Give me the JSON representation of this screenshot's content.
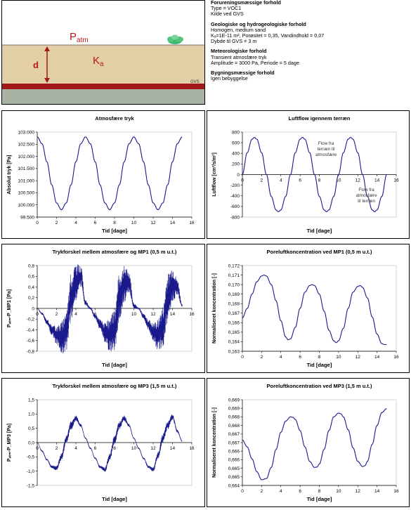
{
  "diagram": {
    "p_label": "P",
    "p_sub": "atm",
    "k_label": "K",
    "k_sub": "a",
    "d_label": "d",
    "gvs_label": "GVS"
  },
  "info": [
    {
      "heading": "Forureningsmæssige forhold",
      "lines": [
        "Type = VOC1",
        "Kilde ved GVS"
      ]
    },
    {
      "heading": "Geologiske og hydrogeologiske forhold",
      "lines": [
        "Homogen, medium sand",
        "Kₐ=1E-11 m², Porøsitet = 0,35, Vandindhold = 0,07",
        "Dybde til GVS = 3 m"
      ]
    },
    {
      "heading": "Meteorologiske forhold",
      "lines": [
        "Transient atmosfære tryk",
        "Amplitude = 3000 Pa, Periode = 5 dage"
      ]
    },
    {
      "heading": "Bygningsmæssige forhold",
      "lines": [
        "Igen bebyggelse"
      ]
    }
  ],
  "chart_data": [
    {
      "type": "line",
      "title": "Atmosfære tryk",
      "xlabel": "Tid [dage]",
      "ylabel": "Absolut tryk [Pa]",
      "xlim": [
        0,
        16
      ],
      "ylim": [
        99500,
        103000
      ],
      "xticks": [
        0,
        2,
        4,
        6,
        8,
        10,
        12,
        14,
        16
      ],
      "yticks": [
        99500,
        100000,
        100500,
        101000,
        101500,
        102000,
        102500,
        103000
      ],
      "ytick_labels": [
        "99.500",
        "100.000",
        "100.500",
        "101.000",
        "101.500",
        "102.000",
        "102.500",
        "103.000"
      ],
      "series": [
        {
          "x": [
            0,
            0.5,
            1,
            1.5,
            2,
            2.5,
            3,
            3.5,
            4,
            4.5,
            5,
            5.5,
            6,
            6.5,
            7,
            7.5,
            8,
            8.5,
            9,
            9.5,
            10,
            10.5,
            11,
            11.5,
            12,
            12.5,
            13,
            13.5,
            14,
            14.5,
            15
          ],
          "y": [
            102800,
            102519,
            101774,
            100826,
            100081,
            99800,
            100081,
            100826,
            101774,
            102519,
            102800,
            102519,
            101774,
            100826,
            100081,
            99800,
            100081,
            100826,
            101774,
            102519,
            102800,
            102519,
            101774,
            100826,
            100081,
            99800,
            100081,
            100826,
            101774,
            102519,
            102800
          ]
        }
      ]
    },
    {
      "type": "line",
      "title": "Luftflow igennem terræn",
      "xlabel": "Tid [dage]",
      "ylabel": "Luftflow [cm³/s/m²]",
      "xlim": [
        0,
        16
      ],
      "ylim": [
        -800,
        800
      ],
      "xticks": [
        0,
        2,
        4,
        6,
        8,
        10,
        12,
        14,
        16
      ],
      "yticks": [
        -800,
        -600,
        -400,
        -200,
        0,
        200,
        400,
        600,
        800
      ],
      "ytick_labels": [
        "-800",
        "-600",
        "-400",
        "-200",
        "0",
        "200",
        "400",
        "600",
        "800"
      ],
      "annotations": [
        "Flow fra terræn til atmosfære",
        "Flow fra atmosfære til terræn"
      ],
      "series": [
        {
          "x": [
            0,
            0.5,
            1,
            1.25,
            1.5,
            2,
            2.5,
            3,
            3.5,
            3.75,
            4,
            4.5,
            5,
            5.5,
            6,
            6.25,
            6.5,
            7,
            7.5,
            8,
            8.5,
            8.75,
            9,
            9.5,
            10,
            10.5,
            11,
            11.25,
            11.5,
            12,
            12.5,
            13,
            13.5,
            13.75,
            14,
            14.5,
            15
          ],
          "y": [
            0,
            411,
            666,
            700,
            666,
            411,
            0,
            -411,
            -666,
            -700,
            -666,
            -411,
            0,
            411,
            666,
            700,
            666,
            411,
            0,
            -411,
            -666,
            -700,
            -666,
            -411,
            0,
            411,
            666,
            700,
            666,
            411,
            0,
            -411,
            -666,
            -700,
            -666,
            -411,
            0
          ]
        }
      ]
    },
    {
      "type": "line",
      "title": "Trykforskel mellem atmosfære og MP1 (0,5 m u.t.)",
      "xlabel": "Tid [dage]",
      "ylabel": "Pₐₜₘ-P_MP1 [Pa]",
      "xlim": [
        0,
        16
      ],
      "ylim": [
        -0.8,
        0.8
      ],
      "xticks": [
        0,
        2,
        4,
        6,
        8,
        10,
        12,
        14,
        16
      ],
      "yticks": [
        -0.8,
        -0.6,
        -0.4,
        -0.2,
        0,
        0.2,
        0.4,
        0.6,
        0.8
      ],
      "ytick_labels": [
        "-0,8",
        "-0,6",
        "-0,4",
        "-0,2",
        "0",
        "0,2",
        "0,4",
        "0,6",
        "0,8"
      ],
      "noisy": true,
      "series": [
        {
          "x": [
            0,
            0.5,
            1,
            1.5,
            2,
            2.5,
            3,
            3.5,
            4,
            4.5,
            5,
            5.5,
            6,
            6.5,
            7,
            7.5,
            8,
            8.5,
            9,
            9.5,
            10,
            10.5,
            11,
            11.5,
            12,
            12.5,
            13,
            13.5,
            14,
            14.5,
            15
          ],
          "y": [
            0,
            -0.1,
            -0.25,
            -0.4,
            -0.5,
            -0.55,
            -0.4,
            0.2,
            0.5,
            0.6,
            0.1,
            0,
            -0.15,
            -0.3,
            -0.45,
            -0.5,
            -0.4,
            0.2,
            0.45,
            0.5,
            0.05,
            0,
            -0.15,
            -0.3,
            -0.45,
            -0.5,
            -0.35,
            0.2,
            0.45,
            0.4,
            0.05
          ],
          "noise_amplitude": [
            0,
            0.02,
            0.05,
            0.1,
            0.18,
            0.3,
            0.4,
            0.45,
            0.35,
            0.2,
            0.05,
            0.02,
            0.05,
            0.1,
            0.18,
            0.3,
            0.4,
            0.45,
            0.35,
            0.2,
            0.05,
            0.02,
            0.05,
            0.1,
            0.18,
            0.3,
            0.4,
            0.45,
            0.35,
            0.15,
            0.03
          ]
        }
      ]
    },
    {
      "type": "line",
      "title": "Poreluftkoncentration ved MP1 (0,5 m u.t.)",
      "xlabel": "Tid [dage]",
      "ylabel": "Normaliseret koncentration [-]",
      "xlim": [
        0,
        16
      ],
      "ylim": [
        0.163,
        0.172
      ],
      "xticks": [
        0,
        2,
        4,
        6,
        8,
        10,
        12,
        14,
        16
      ],
      "yticks": [
        0.163,
        0.164,
        0.165,
        0.166,
        0.167,
        0.168,
        0.169,
        0.17,
        0.171,
        0.172
      ],
      "ytick_labels": [
        "0,163",
        "0,164",
        "0,165",
        "0,166",
        "0,167",
        "0,168",
        "0,169",
        "0,170",
        "0,171",
        "0,172"
      ],
      "series": [
        {
          "x": [
            0,
            0.5,
            1,
            1.5,
            2,
            2.25,
            2.5,
            3,
            3.5,
            4,
            4.5,
            4.75,
            5,
            5.5,
            6,
            6.5,
            7,
            7.25,
            7.5,
            8,
            8.5,
            9,
            9.5,
            9.75,
            10,
            10.5,
            11,
            11.5,
            12,
            12.25,
            12.5,
            13,
            13.5,
            14,
            14.5,
            14.75,
            15
          ],
          "y": [
            0.1665,
            0.1675,
            0.169,
            0.1703,
            0.1709,
            0.171,
            0.1709,
            0.17,
            0.1683,
            0.1662,
            0.1645,
            0.1642,
            0.1643,
            0.1655,
            0.1675,
            0.1692,
            0.1699,
            0.17,
            0.1699,
            0.169,
            0.1672,
            0.1652,
            0.1641,
            0.1639,
            0.1641,
            0.1654,
            0.1675,
            0.1692,
            0.1698,
            0.1699,
            0.1697,
            0.1686,
            0.1666,
            0.1648,
            0.1638,
            0.1637,
            0.1637
          ]
        }
      ]
    },
    {
      "type": "line",
      "title": "Trykforskel mellem atmosfære og MP3 (1,5 m u.t.)",
      "xlabel": "Tid [dage]",
      "ylabel": "Pₐₜₘ-P_MP3 [Pa]",
      "xlim": [
        0,
        16
      ],
      "ylim": [
        -1.5,
        1.5
      ],
      "xticks": [
        0,
        2,
        4,
        6,
        8,
        10,
        12,
        14,
        16
      ],
      "yticks": [
        -1.5,
        -1.0,
        -0.5,
        0.0,
        0.5,
        1.0,
        1.5
      ],
      "ytick_labels": [
        "-1,5",
        "-1,0",
        "-0,5",
        "0,0",
        "0,5",
        "1,0",
        "1,5"
      ],
      "noisy": true,
      "series": [
        {
          "x": [
            0,
            0.5,
            1,
            1.5,
            2,
            2.5,
            3,
            3.5,
            4,
            4.5,
            5,
            5.5,
            6,
            6.5,
            7,
            7.5,
            8,
            8.5,
            9,
            9.5,
            10,
            10.5,
            11,
            11.5,
            12,
            12.5,
            13,
            13.5,
            14,
            14.5,
            15
          ],
          "y": [
            0,
            -0.3,
            -0.6,
            -0.85,
            -0.9,
            -0.5,
            0.1,
            0.6,
            0.85,
            0.6,
            0.15,
            -0.2,
            -0.55,
            -0.85,
            -0.95,
            -0.5,
            0.1,
            0.6,
            0.85,
            0.6,
            0.15,
            -0.2,
            -0.55,
            -0.85,
            -0.95,
            -0.45,
            0.15,
            0.6,
            0.9,
            0.4,
            0.05
          ],
          "noise_amplitude": [
            0,
            0.02,
            0.03,
            0.05,
            0.08,
            0.12,
            0.15,
            0.15,
            0.1,
            0.05,
            0.02,
            0.02,
            0.03,
            0.05,
            0.08,
            0.12,
            0.15,
            0.15,
            0.1,
            0.05,
            0.02,
            0.02,
            0.03,
            0.05,
            0.08,
            0.12,
            0.15,
            0.15,
            0.1,
            0.05,
            0.02
          ]
        }
      ]
    },
    {
      "type": "line",
      "title": "Poreluftkoncentration ved MP3 (1,5 m u.t.)",
      "xlabel": "Tid [dage]",
      "ylabel": "Normaliseret koncentration [-]",
      "xlim": [
        0,
        16
      ],
      "ylim": [
        0.664,
        0.669
      ],
      "xticks": [
        0,
        2,
        4,
        6,
        8,
        10,
        12,
        14,
        16
      ],
      "yticks": [
        0.664,
        0.6645,
        0.665,
        0.6655,
        0.666,
        0.6665,
        0.667,
        0.6675,
        0.668,
        0.6685,
        0.669
      ],
      "ytick_labels": [
        "0,664",
        "0,665",
        "0,665",
        "0,666",
        "0,666",
        "0,667",
        "0,667",
        "0,668",
        "0,668",
        "0,669",
        "0,669"
      ],
      "series": [
        {
          "x": [
            0,
            0.5,
            1,
            1.5,
            2,
            2.5,
            3,
            3.5,
            4,
            4.5,
            5,
            5.25,
            5.5,
            6,
            6.5,
            7,
            7.5,
            7.75,
            8,
            8.5,
            9,
            9.5,
            10,
            10.25,
            10.5,
            11,
            11.5,
            12,
            12.5,
            12.75,
            13,
            13.5,
            14,
            14.5,
            15
          ],
          "y": [
            0.66665,
            0.66625,
            0.66555,
            0.6648,
            0.66433,
            0.6644,
            0.66505,
            0.6661,
            0.6671,
            0.66775,
            0.668,
            0.66797,
            0.66785,
            0.6672,
            0.66625,
            0.6654,
            0.66505,
            0.66507,
            0.66525,
            0.6661,
            0.6672,
            0.668,
            0.66822,
            0.66818,
            0.668,
            0.66725,
            0.6662,
            0.6654,
            0.6651,
            0.66515,
            0.6654,
            0.6664,
            0.6675,
            0.66825,
            0.66848
          ]
        }
      ]
    }
  ]
}
